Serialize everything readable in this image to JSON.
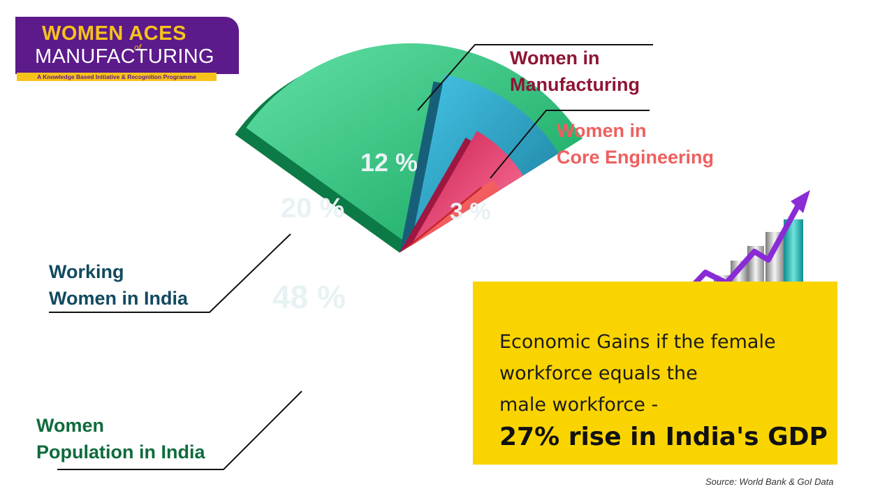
{
  "logo": {
    "line1": "WOMEN ACES",
    "of": "of",
    "line2": "MANUFACTURING",
    "tagline": "A Knowledge Based Initiative & Recognition Programme"
  },
  "chart_data": {
    "type": "pie",
    "title": "",
    "categories": [
      "Women Population in India",
      "Working Women in India",
      "Women in Manufacturing",
      "Women in Core Engineering"
    ],
    "values": [
      48,
      20,
      12,
      3
    ],
    "value_labels": [
      "48 %",
      "20 %",
      "12 %",
      "3 %"
    ],
    "label_lines": [
      [
        "Women",
        "Population in India"
      ],
      [
        "Working",
        "Women in India"
      ],
      [
        "Women in",
        "Manufacturing"
      ],
      [
        "Women in",
        "Core Engineering"
      ]
    ],
    "colors": [
      "#1fb872",
      "#2b8fb0",
      "#de2c5f",
      "#f3595b"
    ]
  },
  "gains": {
    "text_lines": [
      "Economic Gains if the female",
      "workforce equals the",
      "male workforce -"
    ],
    "highlight": "27% rise in India's GDP"
  },
  "source": "Source: World Bank & GoI Data"
}
